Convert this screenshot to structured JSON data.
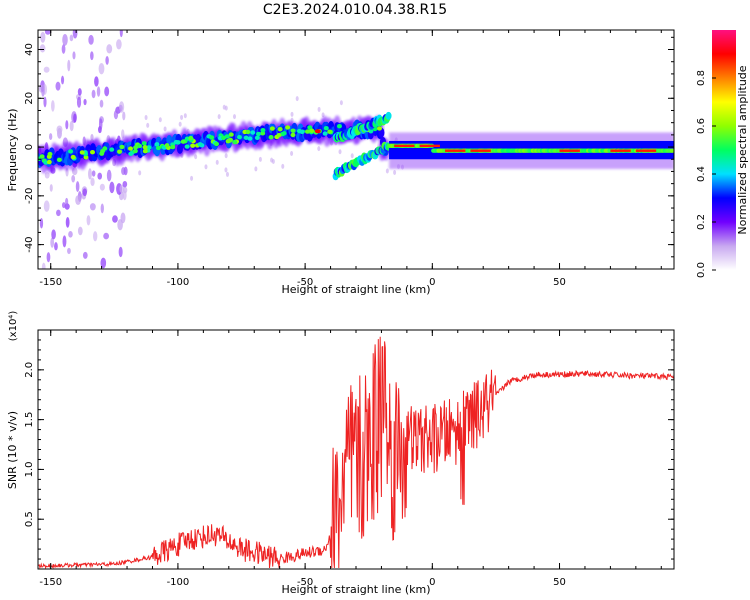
{
  "title": "C2E3.2024.010.04.38.R15",
  "chart_data": [
    {
      "type": "heatmap",
      "xlabel": "Height of straight line (km)",
      "ylabel": "Frequency (Hz)",
      "xlim": [
        -155,
        95
      ],
      "ylim": [
        -50,
        48
      ],
      "xticks": [
        -150,
        -100,
        -50,
        0,
        50
      ],
      "yticks": [
        -40,
        -20,
        0,
        20,
        40
      ],
      "colorbar": {
        "label": "Normalized spectral amplitude",
        "range": [
          0,
          1
        ],
        "ticks": [
          "0.0",
          "0.2",
          "0.4",
          "0.6",
          "0.8"
        ],
        "colors": [
          "#ffffff",
          "#c8a8f0",
          "#7000ff",
          "#0000ff",
          "#00e0ff",
          "#00ff60",
          "#90ff00",
          "#ffff00",
          "#ff8000",
          "#ff0000",
          "#ff1080"
        ]
      },
      "features": [
        {
          "from_x": -155,
          "to_x": -55,
          "from_freq": -5,
          "to_freq": 8,
          "amplitude": 0.45
        },
        {
          "from_x": -55,
          "to_x": -20,
          "from_freq": 5,
          "to_freq": 8,
          "amplitude": 0.75
        },
        {
          "from_x": -38,
          "to_x": -17,
          "from_freq": -11,
          "to_freq": 12,
          "amplitude": 0.4
        },
        {
          "from_x": -17,
          "to_x": 0,
          "from_freq": 0,
          "to_freq": 0,
          "amplitude": 0.9
        },
        {
          "from_x": 0,
          "to_x": 95,
          "from_freq": -2,
          "to_freq": -2,
          "amplitude": 0.85
        }
      ]
    },
    {
      "type": "line",
      "xlabel": "Height of straight line (km)",
      "ylabel": "SNR (10 * v/v)",
      "y_multiplier": "(x10⁴)",
      "xlim": [
        -155,
        95
      ],
      "ylim": [
        0,
        2.4
      ],
      "xticks": [
        -150,
        -100,
        -50,
        0,
        50
      ],
      "yticks": [
        "0.5",
        "1.0",
        "1.5",
        "2.0"
      ],
      "series_color": "#ee2222",
      "envelope": [
        {
          "x": -155,
          "y": 0.03
        },
        {
          "x": -125,
          "y": 0.05
        },
        {
          "x": -110,
          "y": 0.12
        },
        {
          "x": -95,
          "y": 0.3
        },
        {
          "x": -85,
          "y": 0.35
        },
        {
          "x": -75,
          "y": 0.2
        },
        {
          "x": -60,
          "y": 0.1
        },
        {
          "x": -42,
          "y": 0.2
        },
        {
          "x": -38,
          "y": 0.5
        },
        {
          "x": -33,
          "y": 1.0
        },
        {
          "x": -28,
          "y": 1.05
        },
        {
          "x": -24,
          "y": 1.3
        },
        {
          "x": -20,
          "y": 1.35
        },
        {
          "x": -15,
          "y": 1.15
        },
        {
          "x": -10,
          "y": 1.3
        },
        {
          "x": 0,
          "y": 1.3
        },
        {
          "x": 10,
          "y": 1.4
        },
        {
          "x": 20,
          "y": 1.6
        },
        {
          "x": 30,
          "y": 1.88
        },
        {
          "x": 40,
          "y": 1.95
        },
        {
          "x": 60,
          "y": 1.96
        },
        {
          "x": 80,
          "y": 1.94
        },
        {
          "x": 95,
          "y": 1.93
        }
      ]
    }
  ]
}
